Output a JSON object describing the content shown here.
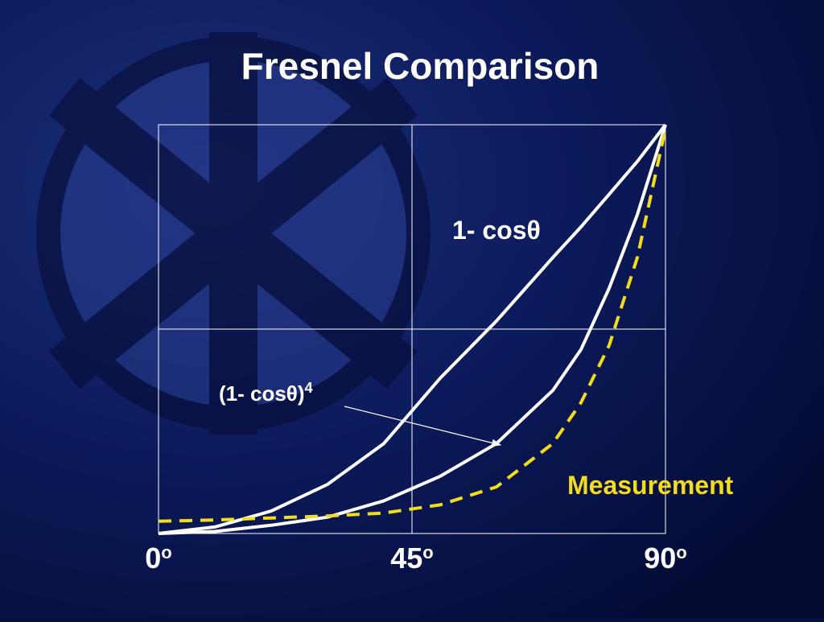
{
  "chart_data": {
    "type": "line",
    "title": "Fresnel Comparison",
    "x": [
      0,
      10,
      20,
      30,
      40,
      50,
      60,
      70,
      75,
      80,
      85,
      90
    ],
    "xlim": [
      0,
      90
    ],
    "xticks": [
      {
        "value": 0,
        "label": "0",
        "sup": "o"
      },
      {
        "value": 45,
        "label": "45",
        "sup": "o"
      },
      {
        "value": 90,
        "label": "90",
        "sup": "o"
      }
    ],
    "ylim": [
      0,
      1
    ],
    "yticks": [
      0,
      0.5,
      1
    ],
    "grid": true,
    "series": [
      {
        "name": "1- cosθ",
        "color": "#ffffff",
        "dashed": false,
        "values": [
          0,
          0.016,
          0.055,
          0.12,
          0.22,
          0.38,
          0.52,
          0.675,
          0.75,
          0.83,
          0.91,
          1
        ]
      },
      {
        "name": "(1- cosθ)",
        "name_sup": "4",
        "color": "#ffffff",
        "dashed": false,
        "values": [
          0,
          0.005,
          0.02,
          0.04,
          0.08,
          0.14,
          0.22,
          0.35,
          0.45,
          0.6,
          0.78,
          1
        ]
      },
      {
        "name": "Measurement",
        "color": "#f2dc1e",
        "dashed": true,
        "values": [
          0.03,
          0.033,
          0.038,
          0.043,
          0.05,
          0.07,
          0.114,
          0.22,
          0.32,
          0.46,
          0.675,
          0.99
        ]
      }
    ]
  }
}
